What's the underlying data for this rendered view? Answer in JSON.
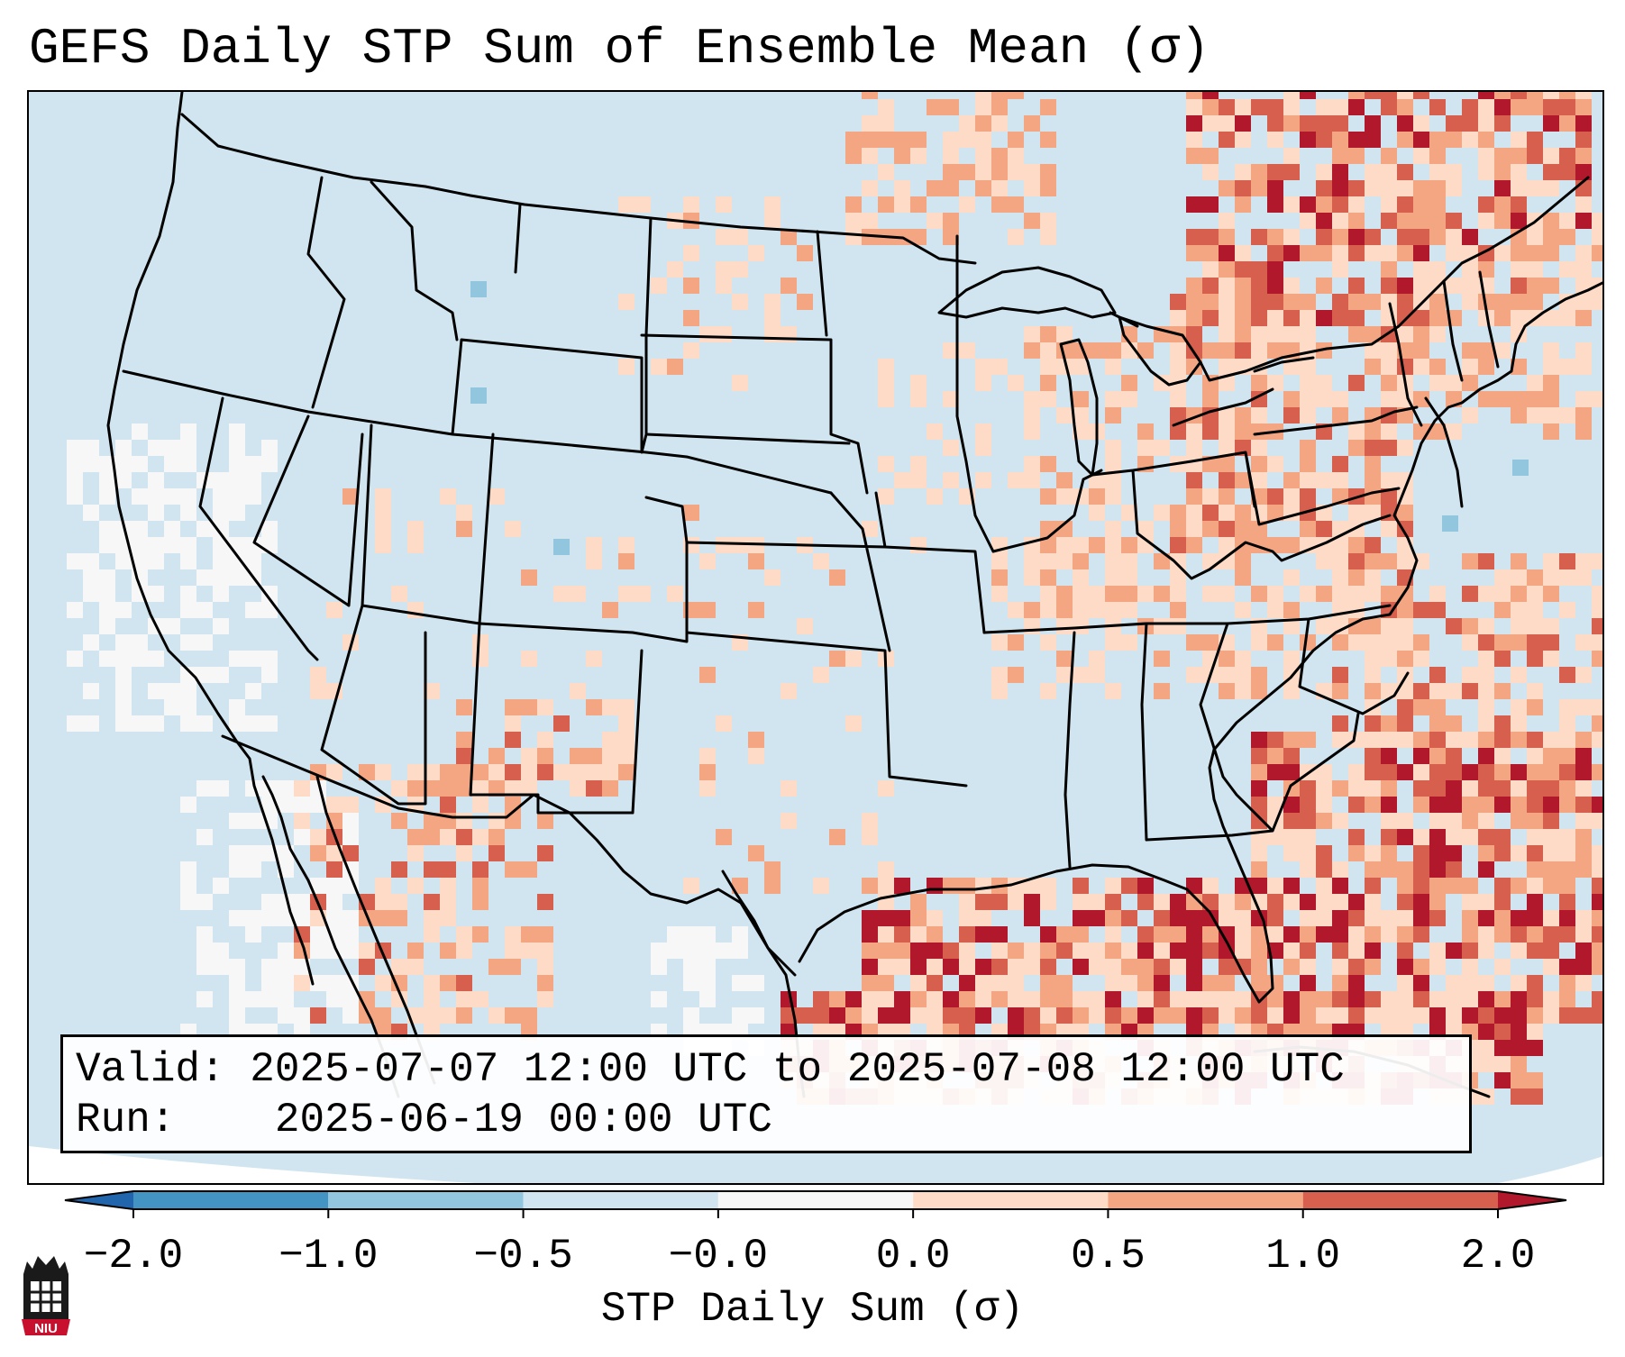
{
  "title": "GEFS Daily STP Sum of Ensemble Mean (σ)",
  "info": {
    "valid_label": "Valid:",
    "valid_value": "2025-07-07 12:00 UTC to 2025-07-08 12:00 UTC",
    "run_label": "Run:",
    "run_value": "2025-06-19 00:00 UTC"
  },
  "colorbar": {
    "label": "STP Daily Sum (σ)",
    "ticks": [
      "−2.0",
      "−1.0",
      "−0.5",
      "−0.0",
      "0.0",
      "0.5",
      "1.0",
      "2.0"
    ],
    "bins": [
      {
        "range": "< -2.0",
        "color": "#2166ac"
      },
      {
        "range": "-2.0 to -1.0",
        "color": "#4393c3"
      },
      {
        "range": "-1.0 to -0.5",
        "color": "#92c5de"
      },
      {
        "range": "-0.5 to -0.0",
        "color": "#d1e5f0"
      },
      {
        "range": "-0.0 to 0.0",
        "color": "#f7f7f7"
      },
      {
        "range": "0.0 to 0.5",
        "color": "#fddbc7"
      },
      {
        "range": "0.5 to 1.0",
        "color": "#f4a582"
      },
      {
        "range": "1.0 to 2.0",
        "color": "#d6604d"
      },
      {
        "range": "> 2.0",
        "color": "#b2182b"
      }
    ]
  },
  "map": {
    "region": "Continental United States",
    "ocean_color": "#d1e5f0",
    "field_palette": {
      "neutral": "#f7f7f7",
      "light": "#fddbc7",
      "medium": "#f4a582",
      "strong": "#d6604d",
      "extreme": "#b2182b",
      "negative": "#92c5de"
    }
  },
  "logo": {
    "text": "NIU",
    "color": "#c8102e"
  }
}
